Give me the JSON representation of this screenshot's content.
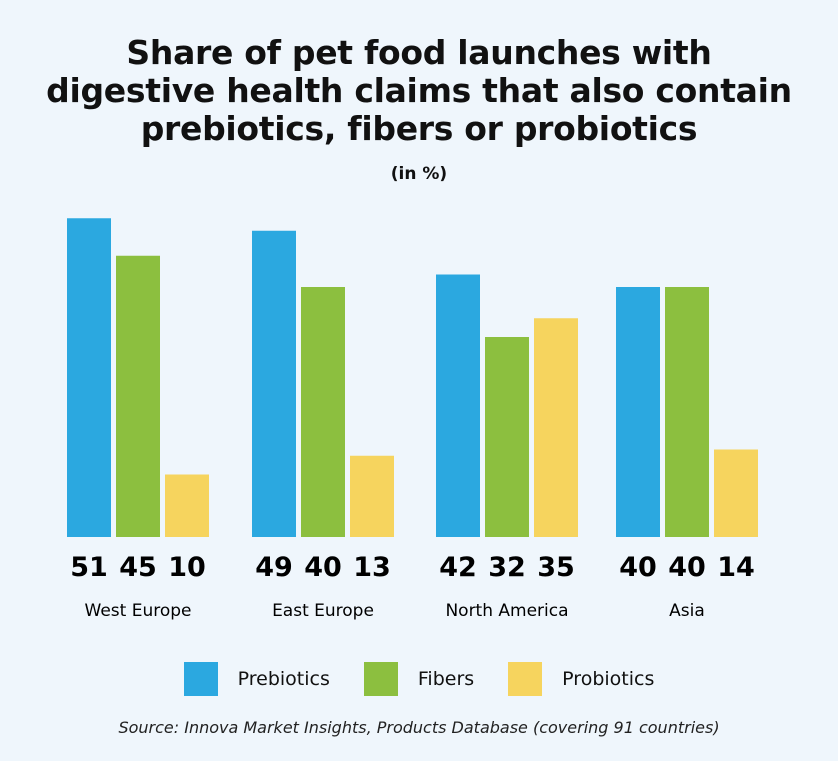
{
  "chart_data": {
    "type": "bar",
    "title": "Share of pet food launches with digestive health claims that also contain prebiotics, fibers or probiotics",
    "title_lines": [
      "Share of pet food launches with",
      "digestive health claims that also contain",
      "prebiotics, fibers or probiotics"
    ],
    "subtitle": "(in %)",
    "categories": [
      "West Europe",
      "East Europe",
      "North America",
      "Asia"
    ],
    "series": [
      {
        "name": "Prebiotics",
        "color": "#2ba8e0",
        "values": [
          51,
          49,
          42,
          40
        ]
      },
      {
        "name": "Fibers",
        "color": "#8cbf3f",
        "values": [
          45,
          40,
          32,
          40
        ]
      },
      {
        "name": "Probiotics",
        "color": "#f6d45e",
        "values": [
          10,
          13,
          35,
          14
        ]
      }
    ],
    "ylim": [
      0,
      55
    ],
    "grid": false,
    "legend_position": "bottom",
    "source": "Source: Innova Market Insights, Products Database (covering 91 countries)"
  }
}
